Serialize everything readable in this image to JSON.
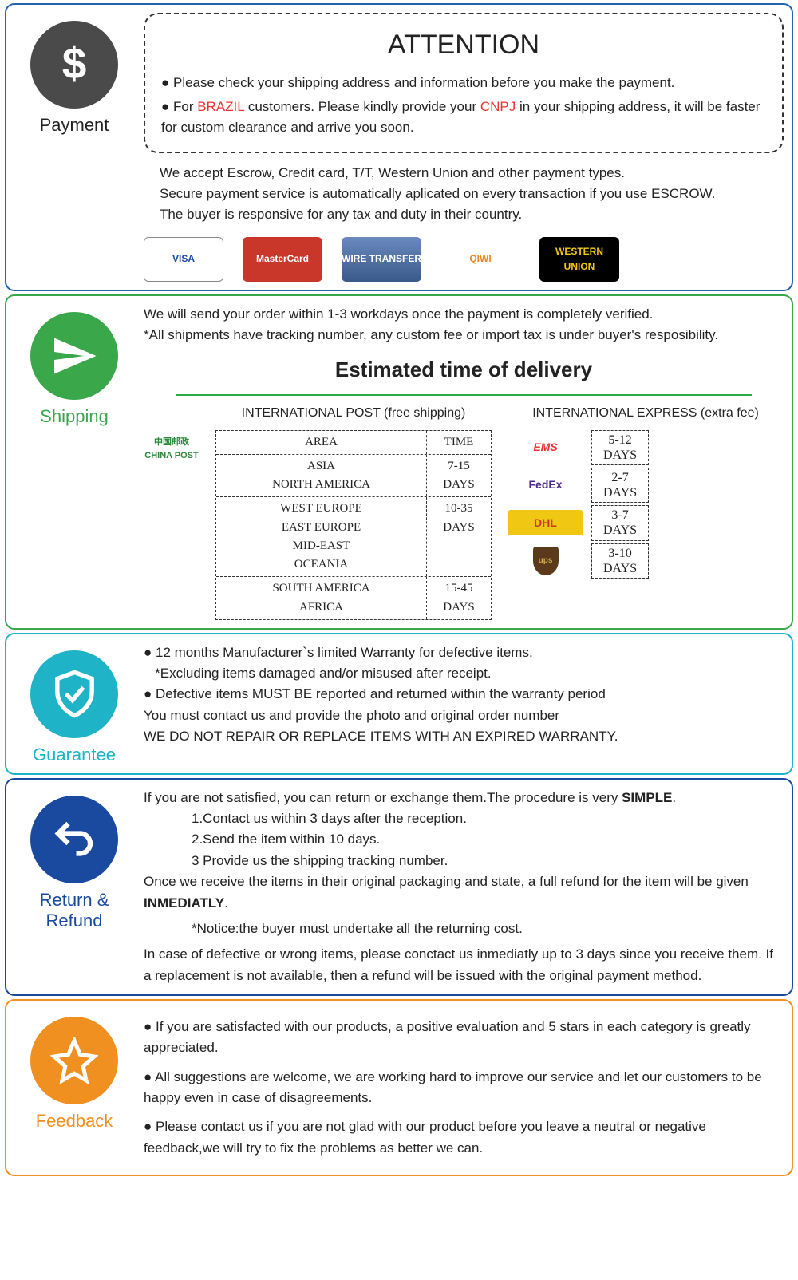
{
  "colors": {
    "payment_border": "#2664b0",
    "payment_circle": "#4a4a4a",
    "payment_label": "#222",
    "shipping_border": "#3aa84a",
    "shipping_circle": "#3aa84a",
    "shipping_label": "#3aa84a",
    "guarantee_border": "#1fb3c8",
    "guarantee_circle": "#1fb3c8",
    "guarantee_label": "#1fb3c8",
    "return_border": "#1a4aa0",
    "return_circle": "#1a4aa0",
    "return_label": "#1a4aa0",
    "feedback_border": "#f09020",
    "feedback_circle": "#f09020",
    "feedback_label": "#f09020"
  },
  "payment": {
    "label": "Payment",
    "attention_title": "ATTENTION",
    "bullets": [
      "Please check your shipping address and information before you make the payment.",
      "For |BRAZIL| customers. Please kindly provide your |CNPJ| in your shipping address, it will be faster for custom clearance and arrive you soon."
    ],
    "notes": [
      "We accept Escrow, Credit card, T/T, Western Union and other payment types.",
      "Secure payment service is automatically aplicated on every transaction if you use ESCROW.",
      "The buyer is responsive for any tax and duty in their country."
    ],
    "cards": [
      {
        "label": "VISA",
        "bg": "#fff",
        "fg": "#1a4aa0",
        "border": "1px solid #888"
      },
      {
        "label": "MasterCard",
        "bg": "#c8372a",
        "fg": "#fff"
      },
      {
        "label": "WIRE TRANSFER",
        "bg": "linear-gradient(#6a8abf,#3a5a8a)",
        "fg": "#fff"
      },
      {
        "label": "QIWI",
        "bg": "#fff",
        "fg": "#f0861a"
      },
      {
        "label": "WESTERN UNION",
        "bg": "#000",
        "fg": "#f0c814"
      }
    ]
  },
  "shipping": {
    "label": "Shipping",
    "intro": [
      "We will send your order within 1-3 workdays once the payment is completely verified.",
      "*All shipments have tracking number, any custom fee or import tax is under buyer's resposibility."
    ],
    "est_title": "Estimated time of delivery",
    "left_head": "INTERNATIONAL POST (free shipping)",
    "right_head": "INTERNATIONAL EXPRESS (extra fee)",
    "china_post": "中国邮政 CHINA POST",
    "post_table": [
      {
        "area": "AREA",
        "time": "TIME"
      },
      {
        "area": "ASIA\nNORTH AMERICA",
        "time": "7-15\nDAYS"
      },
      {
        "area": "WEST EUROPE\nEAST EUROPE\nMID-EAST\nOCEANIA",
        "time": "10-35\nDAYS"
      },
      {
        "area": "SOUTH AMERICA\nAFRICA",
        "time": "15-45\nDAYS"
      }
    ],
    "express": [
      {
        "name": "EMS",
        "bg": "#fff",
        "fg": "#e33",
        "time": "5-12\nDAYS"
      },
      {
        "name": "FedEx",
        "bg": "#fff",
        "fg": "#4a2a8a",
        "time": "2-7\nDAYS"
      },
      {
        "name": "DHL",
        "bg": "#f0c814",
        "fg": "#c8372a",
        "time": "3-7\nDAYS"
      },
      {
        "name": "ups",
        "bg": "transparent",
        "fg": "#fff",
        "time": "3-10\nDAYS"
      }
    ]
  },
  "guarantee": {
    "label": "Guarantee",
    "lines": [
      "● 12 months Manufacturer`s limited Warranty for defective items.",
      "   *Excluding items damaged and/or misused after receipt.",
      "● Defective items MUST BE reported and returned within the warranty period",
      "You must contact us and provide the photo and original order number",
      "WE DO NOT REPAIR OR REPLACE ITEMS WITH AN EXPIRED WARRANTY."
    ]
  },
  "return": {
    "label": "Return & Refund",
    "p1": "If you are not satisfied, you can return or exchange them.The procedure is very ",
    "p1b": "SIMPLE",
    "steps": [
      "1.Contact us within 3 days after the reception.",
      "2.Send the item within 10 days.",
      "3 Provide us the shipping tracking number."
    ],
    "p2a": "Once we receive the items in their original packaging and state, a full refund for the item will be given ",
    "p2b": "INMEDIATLY",
    "notice": "*Notice:the buyer must undertake all the returning cost.",
    "p3": "In case of defective or wrong items, please conctact us inmediatly up to 3 days since you receive them. If a replacement is not available, then a refund will be issued with the original payment method."
  },
  "feedback": {
    "label": "Feedback",
    "bullets": [
      "If you are satisfacted with our products, a positive evaluation and 5 stars in each category is greatly appreciated.",
      "All suggestions are welcome, we are working hard to improve our service and let our customers to be happy even in case of disagreements.",
      "Please contact us if you are not glad with our product before you leave a neutral or negative feedback,we will try to fix the problems as better we can."
    ]
  }
}
